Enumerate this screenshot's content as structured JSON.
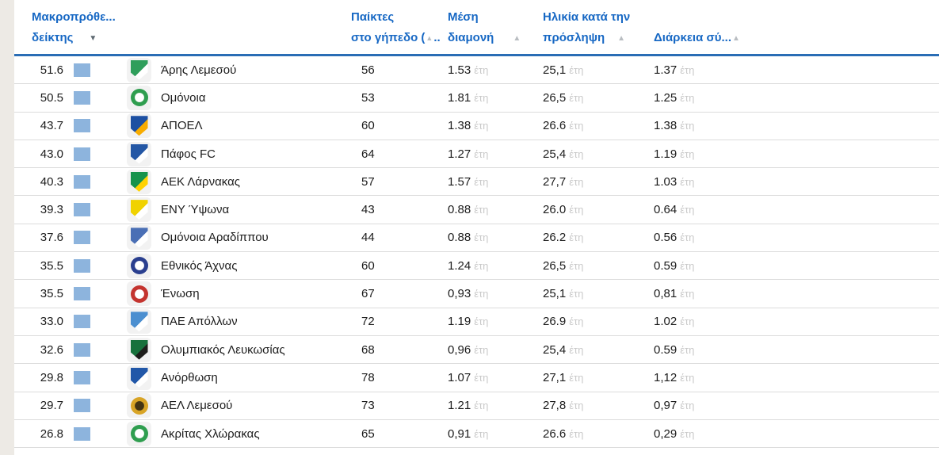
{
  "page": {
    "background": "#ffffff",
    "left_strip_color": "#edeae5"
  },
  "icons": {
    "sort_desc": "▼",
    "sort_asc": "▲"
  },
  "colors": {
    "header_text": "#1768c4",
    "header_border": "#2a6db5",
    "index_bar": "#8db4dd",
    "unit_text": "#c9c9c9",
    "row_divider": "#dcdcdc"
  },
  "table": {
    "unit_years": "έτη",
    "header": {
      "index": {
        "line1": "Μακροπρόθε...",
        "line2": "δείκτης",
        "sort_state": "descending-active"
      },
      "players": {
        "line1": "Παίκτες",
        "line2_pre": "στο γήπεδο (",
        "line2_post": "..",
        "sort_state": "inactive"
      },
      "stay": {
        "line1": "Μέση",
        "line2": "διαμονή",
        "sort_state": "inactive"
      },
      "age": {
        "line1": "Ηλικία κατά την",
        "line2": "πρόσληψη",
        "sort_state": "inactive"
      },
      "duration": {
        "line1": "",
        "line2": "Διάρκεια σύ...",
        "sort_state": "inactive"
      }
    },
    "rows": [
      {
        "index": "51.6",
        "club": "Άρης Λεμεσού",
        "players": "56",
        "stay": "1.53",
        "age": "25,1",
        "duration": "1.37",
        "logo": {
          "name": "aris-limassol-logo",
          "shape": "shield",
          "c1": "#2f9e5b",
          "c2": "#ffffff"
        }
      },
      {
        "index": "50.5",
        "club": "Ομόνοια",
        "players": "53",
        "stay": "1.81",
        "age": "26,5",
        "duration": "1.25",
        "logo": {
          "name": "omonoia-logo",
          "shape": "circle",
          "c1": "#2f9e4f",
          "c2": "#ffffff"
        }
      },
      {
        "index": "43.7",
        "club": "ΑΠΟΕΛ",
        "players": "60",
        "stay": "1.38",
        "age": "26.6",
        "duration": "1.38",
        "logo": {
          "name": "apoel-logo",
          "shape": "shield",
          "c1": "#1d50a2",
          "c2": "#f8ac00"
        }
      },
      {
        "index": "43.0",
        "club": "Πάφος FC",
        "players": "64",
        "stay": "1.27",
        "age": "25,4",
        "duration": "1.19",
        "logo": {
          "name": "pafos-fc-logo",
          "shape": "shield",
          "c1": "#2457a5",
          "c2": "#ffffff"
        }
      },
      {
        "index": "40.3",
        "club": "ΑΕΚ Λάρνακας",
        "players": "57",
        "stay": "1.57",
        "age": "27,7",
        "duration": "1.03",
        "logo": {
          "name": "aek-larnaca-logo",
          "shape": "shield",
          "c1": "#16934c",
          "c2": "#ffd200"
        }
      },
      {
        "index": "39.3",
        "club": "ΕΝΥ Ύψωνα",
        "players": "43",
        "stay": "0.88",
        "age": "26.0",
        "duration": "0.64",
        "logo": {
          "name": "eny-ypsonas-logo",
          "shape": "shield",
          "c1": "#f0d200",
          "c2": "#ffffff"
        }
      },
      {
        "index": "37.6",
        "club": "Ομόνοια Αραδίππου",
        "players": "44",
        "stay": "0.88",
        "age": "26.2",
        "duration": "0.56",
        "logo": {
          "name": "omonoia-aradippou-logo",
          "shape": "shield",
          "c1": "#4a6fb5",
          "c2": "#ffffff"
        }
      },
      {
        "index": "35.5",
        "club": "Εθνικός Άχνας",
        "players": "60",
        "stay": "1.24",
        "age": "26,5",
        "duration": "0.59",
        "logo": {
          "name": "ethnikos-achna-logo",
          "shape": "circle",
          "c1": "#2a3f8f",
          "c2": "#ffffff"
        }
      },
      {
        "index": "35.5",
        "club": "Ένωση",
        "players": "67",
        "stay": "0,93",
        "age": "25,1",
        "duration": "0,81",
        "logo": {
          "name": "enosi-logo",
          "shape": "circle",
          "c1": "#c4342f",
          "c2": "#ffffff"
        }
      },
      {
        "index": "33.0",
        "club": "ΠΑΕ Απόλλων",
        "players": "72",
        "stay": "1.19",
        "age": "26.9",
        "duration": "1.02",
        "logo": {
          "name": "pae-apollon-logo",
          "shape": "shield",
          "c1": "#4c8fd0",
          "c2": "#ffffff"
        }
      },
      {
        "index": "32.6",
        "club": "Ολυμπιακός Λευκωσίας",
        "players": "68",
        "stay": "0,96",
        "age": "25,4",
        "duration": "0.59",
        "logo": {
          "name": "olympiakos-nicosia-logo",
          "shape": "shield",
          "c1": "#17713c",
          "c2": "#1d1d1b"
        }
      },
      {
        "index": "29.8",
        "club": "Ανόρθωση",
        "players": "78",
        "stay": "1.07",
        "age": "27,1",
        "duration": "1,12",
        "logo": {
          "name": "anorthosis-logo",
          "shape": "shield",
          "c1": "#2157a8",
          "c2": "#ffffff"
        }
      },
      {
        "index": "29.7",
        "club": "ΑΕΛ Λεμεσού",
        "players": "73",
        "stay": "1.21",
        "age": "27,8",
        "duration": "0,97",
        "logo": {
          "name": "ael-limassol-logo",
          "shape": "circle",
          "c1": "#d8a426",
          "c2": "#433413"
        }
      },
      {
        "index": "26.8",
        "club": "Ακρίτας Χλώρακας",
        "players": "65",
        "stay": "0,91",
        "age": "26.6",
        "duration": "0,29",
        "logo": {
          "name": "akritas-chlorakas-logo",
          "shape": "circle",
          "c1": "#2f9e4f",
          "c2": "#ffffff"
        }
      }
    ]
  }
}
